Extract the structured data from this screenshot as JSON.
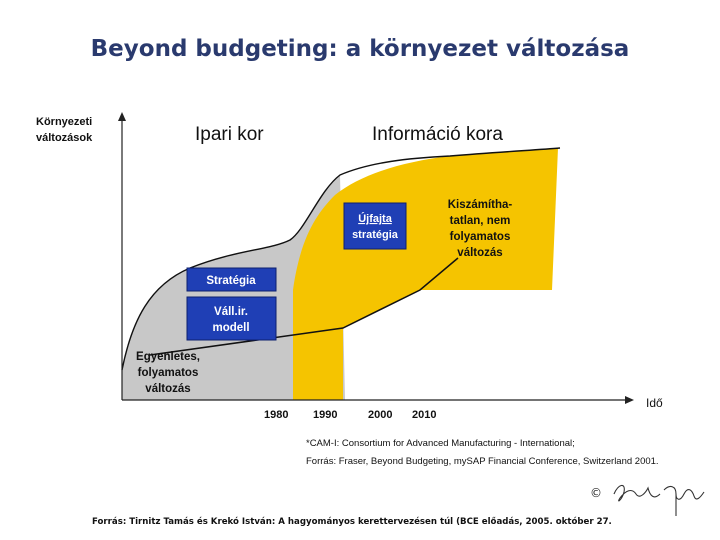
{
  "slide": {
    "title": "Beyond budgeting: a környezet változása"
  },
  "diagram": {
    "y_axis_label": [
      "Környezeti",
      "változások"
    ],
    "x_axis_label": "Idő",
    "era_labels": {
      "industrial": "Ipari kor",
      "information": "Információ kora"
    },
    "x_ticks": [
      "1980",
      "1990",
      "2000",
      "2010"
    ],
    "boxes": {
      "new_strategy": [
        "Újfajta",
        "stratégia"
      ],
      "strategy": "Stratégia",
      "business_model": [
        "Váll.ir.",
        "modell"
      ]
    },
    "region_labels": {
      "steady_change": [
        "Egyenletes,",
        "folyamatos",
        "változás"
      ],
      "unpredictable_change": [
        "Kiszámítha-",
        "tatlan, nem",
        "folyamatos",
        "változás"
      ]
    },
    "colors": {
      "gray_region": "#c8c8c8",
      "yellow_region": "#f5c400",
      "box_blue": "#1f3fb5",
      "title": "#2a3a6e"
    }
  },
  "notes": {
    "line1": "*CAM-I: Consortium for Advanced Manufacturing - International;",
    "line2": "Forrás: Fraser, Beyond Budgeting, mySAP Financial Conference, Switzerland 2001."
  },
  "footer": {
    "copyright": "©",
    "source": "Forrás: Tirnitz Tamás és Krekó István: A hagyományos kerettervezésen túl (BCE előadás, 2005. október 27."
  }
}
